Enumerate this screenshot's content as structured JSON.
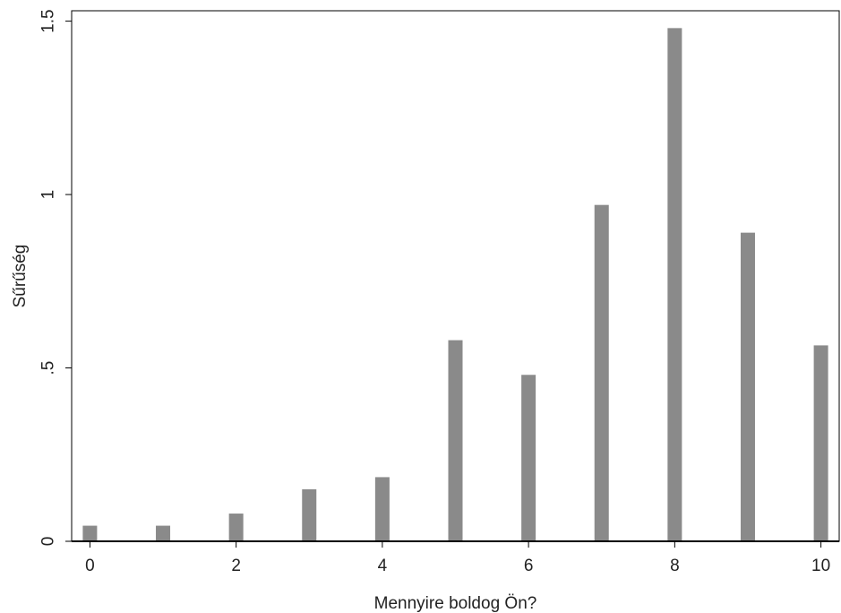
{
  "chart_data": {
    "type": "bar",
    "title": "",
    "xlabel": "Mennyire boldog Ön?",
    "ylabel": "Sűrűség",
    "x": [
      0,
      1,
      2,
      3,
      4,
      5,
      6,
      7,
      8,
      9,
      10
    ],
    "values": [
      0.045,
      0.045,
      0.08,
      0.15,
      0.185,
      0.58,
      0.48,
      0.97,
      1.48,
      0.89,
      0.565
    ],
    "xlim": [
      -0.25,
      10.25
    ],
    "ylim": [
      0,
      1.53
    ],
    "xticks": [
      0,
      2,
      4,
      6,
      8,
      10
    ],
    "xtick_labels": [
      "0",
      "2",
      "4",
      "6",
      "8",
      "10"
    ],
    "yticks": [
      0,
      0.5,
      1,
      1.5
    ],
    "ytick_labels": [
      "0",
      ".5",
      "1",
      "1.5"
    ],
    "bar_color": "#8a8a8a",
    "grid": false,
    "legend": "none"
  }
}
